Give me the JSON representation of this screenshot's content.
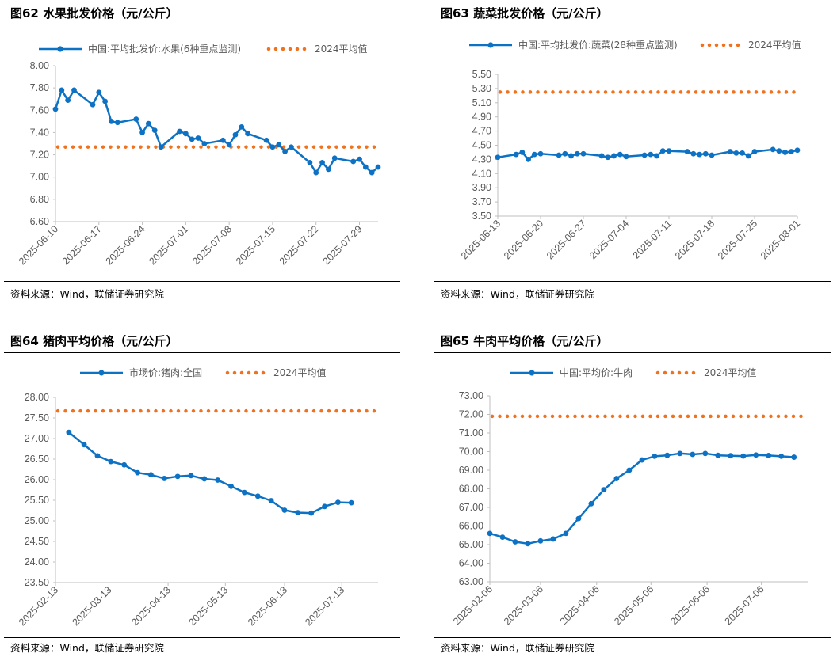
{
  "source_text": "资料来源：Wind，联储证券研究院",
  "colors": {
    "series": "#0E72C4",
    "avg": "#F0721E",
    "axis": "#BFBFBF",
    "tick": "#595959"
  },
  "chart_data": [
    {
      "type": "line",
      "title": "图62 水果批发价格（元/公斤）",
      "series_name": "中国:平均批发价:水果(6种重点监测)",
      "avg_name": "2024平均值",
      "avg_value": 7.27,
      "ylim": [
        6.6,
        8.0
      ],
      "yticks": [
        "8.00",
        "7.80",
        "7.60",
        "7.40",
        "7.20",
        "7.00",
        "6.80",
        "6.60"
      ],
      "xticks": [
        "2025-06-10",
        "2025-06-17",
        "2025-06-24",
        "2025-07-01",
        "2025-07-08",
        "2025-07-15",
        "2025-07-22",
        "2025-07-29"
      ],
      "xstart": "2025-06-10",
      "xend": "2025-08-01",
      "points": [
        [
          "2025-06-10",
          7.61
        ],
        [
          "2025-06-11",
          7.78
        ],
        [
          "2025-06-12",
          7.69
        ],
        [
          "2025-06-13",
          7.78
        ],
        [
          "2025-06-16",
          7.65
        ],
        [
          "2025-06-17",
          7.76
        ],
        [
          "2025-06-18",
          7.68
        ],
        [
          "2025-06-19",
          7.5
        ],
        [
          "2025-06-20",
          7.49
        ],
        [
          "2025-06-23",
          7.52
        ],
        [
          "2025-06-24",
          7.4
        ],
        [
          "2025-06-25",
          7.48
        ],
        [
          "2025-06-26",
          7.42
        ],
        [
          "2025-06-27",
          7.27
        ],
        [
          "2025-06-30",
          7.41
        ],
        [
          "2025-07-01",
          7.39
        ],
        [
          "2025-07-02",
          7.34
        ],
        [
          "2025-07-03",
          7.35
        ],
        [
          "2025-07-04",
          7.3
        ],
        [
          "2025-07-07",
          7.33
        ],
        [
          "2025-07-08",
          7.29
        ],
        [
          "2025-07-09",
          7.38
        ],
        [
          "2025-07-10",
          7.45
        ],
        [
          "2025-07-11",
          7.39
        ],
        [
          "2025-07-14",
          7.33
        ],
        [
          "2025-07-15",
          7.27
        ],
        [
          "2025-07-16",
          7.29
        ],
        [
          "2025-07-17",
          7.23
        ],
        [
          "2025-07-18",
          7.27
        ],
        [
          "2025-07-21",
          7.13
        ],
        [
          "2025-07-22",
          7.04
        ],
        [
          "2025-07-23",
          7.13
        ],
        [
          "2025-07-24",
          7.07
        ],
        [
          "2025-07-25",
          7.17
        ],
        [
          "2025-07-28",
          7.14
        ],
        [
          "2025-07-29",
          7.16
        ],
        [
          "2025-07-30",
          7.09
        ],
        [
          "2025-07-31",
          7.04
        ],
        [
          "2025-08-01",
          7.09
        ]
      ]
    },
    {
      "type": "line",
      "title": "图63 蔬菜批发价格（元/公斤）",
      "series_name": "中国:平均批发价:蔬菜(28种重点监测)",
      "avg_name": "2024平均值",
      "avg_value": 5.25,
      "ylim": [
        3.5,
        5.5
      ],
      "yticks": [
        "5.50",
        "5.30",
        "5.10",
        "4.90",
        "4.70",
        "4.50",
        "4.30",
        "4.10",
        "3.90",
        "3.70",
        "3.50"
      ],
      "xticks": [
        "2025-06-13",
        "2025-06-20",
        "2025-06-27",
        "2025-07-04",
        "2025-07-11",
        "2025-07-18",
        "2025-07-25",
        "2025-08-01"
      ],
      "xstart": "2025-06-13",
      "xend": "2025-08-01",
      "points": [
        [
          "2025-06-13",
          4.33
        ],
        [
          "2025-06-16",
          4.37
        ],
        [
          "2025-06-17",
          4.4
        ],
        [
          "2025-06-18",
          4.3
        ],
        [
          "2025-06-19",
          4.37
        ],
        [
          "2025-06-20",
          4.38
        ],
        [
          "2025-06-23",
          4.36
        ],
        [
          "2025-06-24",
          4.38
        ],
        [
          "2025-06-25",
          4.35
        ],
        [
          "2025-06-26",
          4.38
        ],
        [
          "2025-06-27",
          4.38
        ],
        [
          "2025-06-30",
          4.35
        ],
        [
          "2025-07-01",
          4.33
        ],
        [
          "2025-07-02",
          4.35
        ],
        [
          "2025-07-03",
          4.37
        ],
        [
          "2025-07-04",
          4.34
        ],
        [
          "2025-07-07",
          4.36
        ],
        [
          "2025-07-08",
          4.37
        ],
        [
          "2025-07-09",
          4.35
        ],
        [
          "2025-07-10",
          4.42
        ],
        [
          "2025-07-11",
          4.42
        ],
        [
          "2025-07-14",
          4.41
        ],
        [
          "2025-07-15",
          4.38
        ],
        [
          "2025-07-16",
          4.37
        ],
        [
          "2025-07-17",
          4.38
        ],
        [
          "2025-07-18",
          4.36
        ],
        [
          "2025-07-21",
          4.41
        ],
        [
          "2025-07-22",
          4.39
        ],
        [
          "2025-07-23",
          4.39
        ],
        [
          "2025-07-24",
          4.35
        ],
        [
          "2025-07-25",
          4.41
        ],
        [
          "2025-07-28",
          4.44
        ],
        [
          "2025-07-29",
          4.42
        ],
        [
          "2025-07-30",
          4.4
        ],
        [
          "2025-07-31",
          4.41
        ],
        [
          "2025-08-01",
          4.43
        ]
      ]
    },
    {
      "type": "line",
      "title": "图64 猪肉平均价格（元/公斤）",
      "series_name": "市场价:猪肉:全国",
      "avg_name": "2024平均值",
      "avg_value": 27.67,
      "ylim": [
        23.5,
        28.0
      ],
      "yticks": [
        "28.00",
        "27.50",
        "27.00",
        "26.50",
        "26.00",
        "25.50",
        "25.00",
        "24.50",
        "24.00",
        "23.50"
      ],
      "xticks": [
        "2025-02-13",
        "2025-03-13",
        "2025-04-13",
        "2025-05-13",
        "2025-06-13",
        "2025-07-13"
      ],
      "xstart": "2025-02-13",
      "xend": "2025-08-01",
      "points": [
        [
          "2025-02-20",
          27.15
        ],
        [
          "2025-02-28",
          26.85
        ],
        [
          "2025-03-07",
          26.58
        ],
        [
          "2025-03-14",
          26.44
        ],
        [
          "2025-03-21",
          26.36
        ],
        [
          "2025-03-28",
          26.17
        ],
        [
          "2025-04-04",
          26.12
        ],
        [
          "2025-04-11",
          26.03
        ],
        [
          "2025-04-18",
          26.08
        ],
        [
          "2025-04-25",
          26.1
        ],
        [
          "2025-05-02",
          26.02
        ],
        [
          "2025-05-09",
          25.99
        ],
        [
          "2025-05-16",
          25.84
        ],
        [
          "2025-05-23",
          25.69
        ],
        [
          "2025-05-30",
          25.6
        ],
        [
          "2025-06-06",
          25.49
        ],
        [
          "2025-06-13",
          25.26
        ],
        [
          "2025-06-20",
          25.2
        ],
        [
          "2025-06-27",
          25.19
        ],
        [
          "2025-07-04",
          25.35
        ],
        [
          "2025-07-11",
          25.45
        ],
        [
          "2025-07-18",
          25.44
        ]
      ]
    },
    {
      "type": "line",
      "title": "图65 牛肉平均价格（元/公斤）",
      "series_name": "中国:平均价:牛肉",
      "avg_name": "2024平均值",
      "avg_value": 71.9,
      "ylim": [
        63.0,
        73.0
      ],
      "yticks": [
        "73.00",
        "72.00",
        "71.00",
        "70.00",
        "69.00",
        "68.00",
        "67.00",
        "66.00",
        "65.00",
        "64.00",
        "63.00"
      ],
      "xticks": [
        "2025-02-06",
        "2025-03-06",
        "2025-04-06",
        "2025-05-06",
        "2025-06-06",
        "2025-07-06"
      ],
      "xstart": "2025-02-06",
      "xend": "2025-08-01",
      "points": [
        [
          "2025-02-06",
          65.6
        ],
        [
          "2025-02-13",
          65.4
        ],
        [
          "2025-02-20",
          65.15
        ],
        [
          "2025-02-27",
          65.05
        ],
        [
          "2025-03-06",
          65.2
        ],
        [
          "2025-03-13",
          65.3
        ],
        [
          "2025-03-20",
          65.6
        ],
        [
          "2025-03-27",
          66.4
        ],
        [
          "2025-04-03",
          67.2
        ],
        [
          "2025-04-10",
          67.95
        ],
        [
          "2025-04-17",
          68.55
        ],
        [
          "2025-04-24",
          69.0
        ],
        [
          "2025-05-01",
          69.55
        ],
        [
          "2025-05-08",
          69.75
        ],
        [
          "2025-05-15",
          69.8
        ],
        [
          "2025-05-22",
          69.9
        ],
        [
          "2025-05-29",
          69.85
        ],
        [
          "2025-06-05",
          69.9
        ],
        [
          "2025-06-12",
          69.8
        ],
        [
          "2025-06-19",
          69.78
        ],
        [
          "2025-06-26",
          69.76
        ],
        [
          "2025-07-03",
          69.82
        ],
        [
          "2025-07-10",
          69.79
        ],
        [
          "2025-07-17",
          69.75
        ],
        [
          "2025-07-24",
          69.7
        ]
      ]
    }
  ]
}
